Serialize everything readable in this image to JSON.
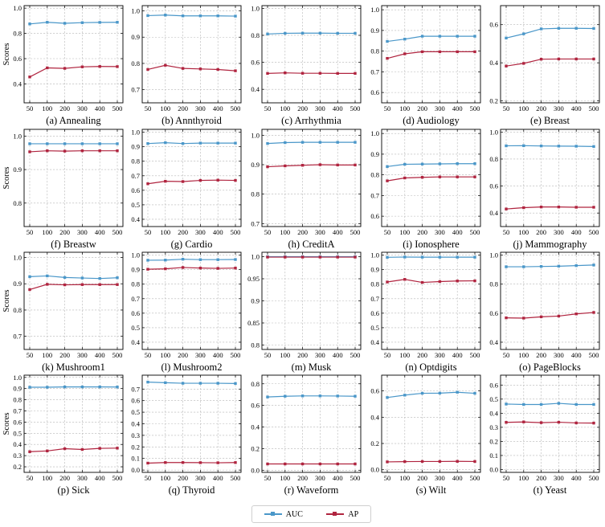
{
  "colors": {
    "auc": "#4a97c9",
    "ap": "#b0243f"
  },
  "legend": {
    "auc": "AUC",
    "ap": "AP"
  },
  "ylabel": "Scores",
  "chart_data": [
    {
      "type": "line",
      "title": "(a) Annealing",
      "categories": [
        "50",
        "100",
        "200",
        "300",
        "400",
        "500"
      ],
      "ylim": [
        0.25,
        1.02
      ],
      "yticks": [
        0.4,
        0.6,
        0.8,
        1.0
      ],
      "series": [
        {
          "name": "AUC",
          "values": [
            0.875,
            0.888,
            0.88,
            0.885,
            0.887,
            0.888
          ]
        },
        {
          "name": "AP",
          "values": [
            0.455,
            0.527,
            0.523,
            0.535,
            0.538,
            0.537
          ]
        }
      ]
    },
    {
      "type": "line",
      "title": "(b) Annthyroid",
      "categories": [
        "50",
        "100",
        "200",
        "300",
        "400",
        "500"
      ],
      "ylim": [
        0.65,
        1.02
      ],
      "yticks": [
        0.7,
        0.8,
        0.9,
        1.0
      ],
      "series": [
        {
          "name": "AUC",
          "values": [
            0.982,
            0.984,
            0.981,
            0.981,
            0.981,
            0.98
          ]
        },
        {
          "name": "AP",
          "values": [
            0.777,
            0.793,
            0.781,
            0.779,
            0.777,
            0.772
          ]
        }
      ]
    },
    {
      "type": "line",
      "title": "(c) Arrhythmia",
      "categories": [
        "50",
        "100",
        "200",
        "300",
        "400",
        "500"
      ],
      "ylim": [
        0.3,
        1.02
      ],
      "yticks": [
        0.4,
        0.6,
        0.8,
        1.0
      ],
      "series": [
        {
          "name": "AUC",
          "values": [
            0.81,
            0.815,
            0.816,
            0.816,
            0.815,
            0.815
          ]
        },
        {
          "name": "AP",
          "values": [
            0.518,
            0.522,
            0.519,
            0.519,
            0.518,
            0.518
          ]
        }
      ]
    },
    {
      "type": "line",
      "title": "(d) Audiology",
      "categories": [
        "50",
        "100",
        "200",
        "300",
        "400",
        "500"
      ],
      "ylim": [
        0.55,
        1.02
      ],
      "yticks": [
        0.6,
        0.7,
        0.8,
        0.9,
        1.0
      ],
      "series": [
        {
          "name": "AUC",
          "values": [
            0.847,
            0.858,
            0.872,
            0.872,
            0.872,
            0.872
          ]
        },
        {
          "name": "AP",
          "values": [
            0.765,
            0.787,
            0.797,
            0.797,
            0.797,
            0.797
          ]
        }
      ]
    },
    {
      "type": "line",
      "title": "(e) Breast",
      "categories": [
        "50",
        "100",
        "200",
        "300",
        "400",
        "500"
      ],
      "ylim": [
        0.19,
        0.7
      ],
      "yticks": [
        0.2,
        0.4,
        0.6
      ],
      "series": [
        {
          "name": "AUC",
          "values": [
            0.53,
            0.552,
            0.578,
            0.581,
            0.581,
            0.58
          ]
        },
        {
          "name": "AP",
          "values": [
            0.383,
            0.397,
            0.419,
            0.42,
            0.42,
            0.42
          ]
        }
      ]
    },
    {
      "type": "line",
      "title": "(f) Breastw",
      "categories": [
        "50",
        "100",
        "200",
        "300",
        "400",
        "500"
      ],
      "ylim": [
        0.73,
        1.02
      ],
      "yticks": [
        0.8,
        0.9,
        1.0
      ],
      "series": [
        {
          "name": "AUC",
          "values": [
            0.977,
            0.977,
            0.977,
            0.977,
            0.977,
            0.977
          ]
        },
        {
          "name": "AP",
          "values": [
            0.953,
            0.956,
            0.955,
            0.956,
            0.956,
            0.956
          ]
        }
      ]
    },
    {
      "type": "line",
      "title": "(g) Cardio",
      "categories": [
        "50",
        "100",
        "200",
        "300",
        "400",
        "500"
      ],
      "ylim": [
        0.35,
        1.02
      ],
      "yticks": [
        0.4,
        0.5,
        0.6,
        0.7,
        0.8,
        0.9,
        1.0
      ],
      "series": [
        {
          "name": "AUC",
          "values": [
            0.922,
            0.928,
            0.922,
            0.925,
            0.925,
            0.925
          ]
        },
        {
          "name": "AP",
          "values": [
            0.645,
            0.662,
            0.66,
            0.668,
            0.67,
            0.668
          ]
        }
      ]
    },
    {
      "type": "line",
      "title": "(h) CreditA",
      "categories": [
        "50",
        "100",
        "200",
        "300",
        "400",
        "500"
      ],
      "ylim": [
        0.69,
        1.02
      ],
      "yticks": [
        0.7,
        0.8,
        0.9,
        1.0
      ],
      "series": [
        {
          "name": "AUC",
          "values": [
            0.972,
            0.975,
            0.976,
            0.976,
            0.976,
            0.976
          ]
        },
        {
          "name": "AP",
          "values": [
            0.893,
            0.896,
            0.898,
            0.9,
            0.899,
            0.899
          ]
        }
      ]
    },
    {
      "type": "line",
      "title": "(i) Ionosphere",
      "categories": [
        "50",
        "100",
        "200",
        "300",
        "400",
        "500"
      ],
      "ylim": [
        0.55,
        1.02
      ],
      "yticks": [
        0.6,
        0.7,
        0.8,
        0.9,
        1.0
      ],
      "series": [
        {
          "name": "AUC",
          "values": [
            0.84,
            0.851,
            0.852,
            0.853,
            0.854,
            0.854
          ]
        },
        {
          "name": "AP",
          "values": [
            0.771,
            0.785,
            0.788,
            0.79,
            0.79,
            0.79
          ]
        }
      ]
    },
    {
      "type": "line",
      "title": "(j) Mammography",
      "categories": [
        "50",
        "100",
        "200",
        "300",
        "400",
        "500"
      ],
      "ylim": [
        0.3,
        1.02
      ],
      "yticks": [
        0.4,
        0.6,
        0.8,
        1.0
      ],
      "series": [
        {
          "name": "AUC",
          "values": [
            0.898,
            0.899,
            0.897,
            0.896,
            0.895,
            0.893
          ]
        },
        {
          "name": "AP",
          "values": [
            0.43,
            0.44,
            0.445,
            0.445,
            0.443,
            0.443
          ]
        }
      ]
    },
    {
      "type": "line",
      "title": "(k) Mushroom1",
      "categories": [
        "50",
        "100",
        "200",
        "300",
        "400",
        "500"
      ],
      "ylim": [
        0.65,
        1.02
      ],
      "yticks": [
        0.7,
        0.8,
        0.9,
        1.0
      ],
      "series": [
        {
          "name": "AUC",
          "values": [
            0.927,
            0.93,
            0.924,
            0.922,
            0.92,
            0.923
          ]
        },
        {
          "name": "AP",
          "values": [
            0.878,
            0.898,
            0.896,
            0.897,
            0.897,
            0.897
          ]
        }
      ]
    },
    {
      "type": "line",
      "title": "(l) Mushroom2",
      "categories": [
        "50",
        "100",
        "200",
        "300",
        "400",
        "500"
      ],
      "ylim": [
        0.35,
        1.02
      ],
      "yticks": [
        0.4,
        0.5,
        0.6,
        0.7,
        0.8,
        0.9,
        1.0
      ],
      "series": [
        {
          "name": "AUC",
          "values": [
            0.965,
            0.966,
            0.972,
            0.969,
            0.969,
            0.97
          ]
        },
        {
          "name": "AP",
          "values": [
            0.903,
            0.906,
            0.915,
            0.911,
            0.909,
            0.911
          ]
        }
      ]
    },
    {
      "type": "line",
      "title": "(m) Musk",
      "categories": [
        "50",
        "100",
        "200",
        "300",
        "400",
        "500"
      ],
      "ylim": [
        0.79,
        1.01
      ],
      "yticks": [
        0.8,
        0.85,
        0.9,
        0.95,
        1.0
      ],
      "series": [
        {
          "name": "AUC",
          "values": [
            1.0,
            1.0,
            1.0,
            1.0,
            1.0,
            1.0
          ]
        },
        {
          "name": "AP",
          "values": [
            0.999,
            0.999,
            0.999,
            0.999,
            0.999,
            0.999
          ]
        }
      ]
    },
    {
      "type": "line",
      "title": "(n) Optdigits",
      "categories": [
        "50",
        "100",
        "200",
        "300",
        "400",
        "500"
      ],
      "ylim": [
        0.35,
        1.02
      ],
      "yticks": [
        0.4,
        0.5,
        0.6,
        0.7,
        0.8,
        0.9,
        1.0
      ],
      "series": [
        {
          "name": "AUC",
          "values": [
            0.985,
            0.987,
            0.986,
            0.986,
            0.986,
            0.986
          ]
        },
        {
          "name": "AP",
          "values": [
            0.815,
            0.833,
            0.812,
            0.818,
            0.822,
            0.823
          ]
        }
      ]
    },
    {
      "type": "line",
      "title": "(o) PageBlocks",
      "categories": [
        "50",
        "100",
        "200",
        "300",
        "400",
        "500"
      ],
      "ylim": [
        0.35,
        1.02
      ],
      "yticks": [
        0.4,
        0.6,
        0.8,
        1.0
      ],
      "series": [
        {
          "name": "AUC",
          "values": [
            0.92,
            0.92,
            0.922,
            0.924,
            0.928,
            0.932
          ]
        },
        {
          "name": "AP",
          "values": [
            0.568,
            0.566,
            0.575,
            0.58,
            0.595,
            0.605
          ]
        }
      ]
    },
    {
      "type": "line",
      "title": "(p) Sick",
      "categories": [
        "50",
        "100",
        "200",
        "300",
        "400",
        "500"
      ],
      "ylim": [
        0.15,
        1.02
      ],
      "yticks": [
        0.2,
        0.3,
        0.4,
        0.5,
        0.6,
        0.7,
        0.8,
        0.9,
        1.0
      ],
      "series": [
        {
          "name": "AUC",
          "values": [
            0.912,
            0.912,
            0.915,
            0.915,
            0.915,
            0.914
          ]
        },
        {
          "name": "AP",
          "values": [
            0.335,
            0.342,
            0.362,
            0.355,
            0.365,
            0.367
          ]
        }
      ]
    },
    {
      "type": "line",
      "title": "(q) Thyroid",
      "categories": [
        "50",
        "100",
        "200",
        "300",
        "400",
        "500"
      ],
      "ylim": [
        -0.02,
        0.82
      ],
      "yticks": [
        0.0,
        0.1,
        0.2,
        0.3,
        0.4,
        0.5,
        0.6,
        0.7
      ],
      "series": [
        {
          "name": "AUC",
          "values": [
            0.76,
            0.755,
            0.75,
            0.75,
            0.75,
            0.748
          ]
        },
        {
          "name": "AP",
          "values": [
            0.06,
            0.065,
            0.065,
            0.064,
            0.063,
            0.065
          ]
        }
      ]
    },
    {
      "type": "line",
      "title": "(r) Waveform",
      "categories": [
        "50",
        "100",
        "200",
        "300",
        "400",
        "500"
      ],
      "ylim": [
        -0.02,
        0.88
      ],
      "yticks": [
        0.0,
        0.2,
        0.4,
        0.6,
        0.8
      ],
      "series": [
        {
          "name": "AUC",
          "values": [
            0.678,
            0.685,
            0.688,
            0.688,
            0.687,
            0.685
          ]
        },
        {
          "name": "AP",
          "values": [
            0.058,
            0.058,
            0.058,
            0.058,
            0.058,
            0.058
          ]
        }
      ]
    },
    {
      "type": "line",
      "title": "(s) Wilt",
      "categories": [
        "50",
        "100",
        "200",
        "300",
        "400",
        "500"
      ],
      "ylim": [
        -0.02,
        0.72
      ],
      "yticks": [
        0.0,
        0.2,
        0.4,
        0.6
      ],
      "series": [
        {
          "name": "AUC",
          "values": [
            0.55,
            0.568,
            0.582,
            0.583,
            0.59,
            0.582
          ]
        },
        {
          "name": "AP",
          "values": [
            0.06,
            0.062,
            0.063,
            0.063,
            0.064,
            0.063
          ]
        }
      ]
    },
    {
      "type": "line",
      "title": "(t) Yeast",
      "categories": [
        "50",
        "100",
        "200",
        "300",
        "400",
        "500"
      ],
      "ylim": [
        -0.02,
        0.67
      ],
      "yticks": [
        0.0,
        0.1,
        0.2,
        0.3,
        0.4,
        0.5,
        0.6
      ],
      "series": [
        {
          "name": "AUC",
          "values": [
            0.465,
            0.462,
            0.462,
            0.47,
            0.462,
            0.462
          ]
        },
        {
          "name": "AP",
          "values": [
            0.335,
            0.338,
            0.333,
            0.336,
            0.331,
            0.33
          ]
        }
      ]
    }
  ]
}
